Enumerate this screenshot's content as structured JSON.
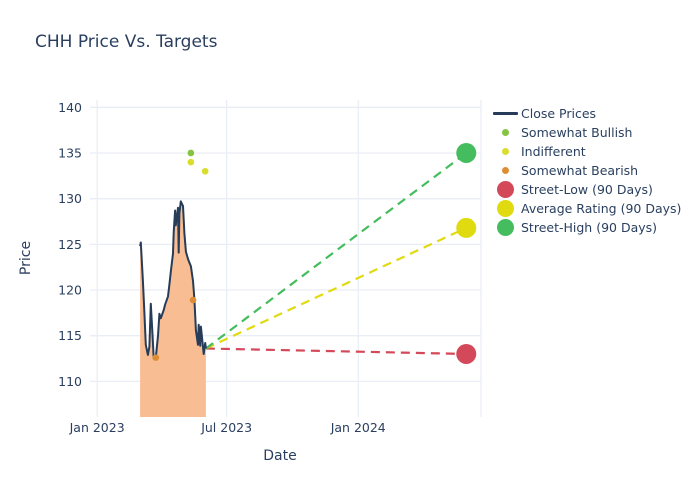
{
  "title": "CHH Price Vs. Targets",
  "colors": {
    "close_line": "#263c58",
    "close_fill": "#f9bd94",
    "bullish": "#85c340",
    "indifferent": "#d9dd2c",
    "bearish": "#dd8e35",
    "street_low": "#d4495a",
    "average": "#e0da10",
    "street_high": "#45bc5e",
    "grid": "#e9eef6",
    "text": "#2a3f5f",
    "background": "#ffffff"
  },
  "chart_data": {
    "type": "line",
    "title": "CHH Price Vs. Targets",
    "xlabel": "Date",
    "ylabel": "Price",
    "grid": true,
    "legend_position": "right",
    "x_range": [
      "2022-12-22",
      "2024-06-22"
    ],
    "y_range": [
      106.1,
      140.8
    ],
    "yticks": [
      110,
      115,
      120,
      125,
      130,
      135,
      140
    ],
    "xticks": [
      {
        "label": "Jan 2023",
        "date": "2023-01-01"
      },
      {
        "label": "Jul 2023",
        "date": "2023-07-01"
      },
      {
        "label": "Jan 2024",
        "date": "2024-01-01"
      }
    ],
    "series": [
      {
        "name": "Close Prices",
        "type": "area-line",
        "color_key": "close_line",
        "fill_key": "close_fill",
        "points": [
          [
            "2023-03-02",
            124.8
          ],
          [
            "2023-03-03",
            125.2
          ],
          [
            "2023-03-06",
            121.0
          ],
          [
            "2023-03-08",
            117.5
          ],
          [
            "2023-03-10",
            114.0
          ],
          [
            "2023-03-13",
            112.9
          ],
          [
            "2023-03-15",
            113.8
          ],
          [
            "2023-03-17",
            118.5
          ],
          [
            "2023-03-20",
            114.3
          ],
          [
            "2023-03-21",
            112.5
          ],
          [
            "2023-03-24",
            112.6
          ],
          [
            "2023-03-27",
            115.0
          ],
          [
            "2023-03-29",
            117.4
          ],
          [
            "2023-03-31",
            116.9
          ],
          [
            "2023-04-04",
            117.8
          ],
          [
            "2023-04-06",
            118.4
          ],
          [
            "2023-04-10",
            119.3
          ],
          [
            "2023-04-12",
            120.6
          ],
          [
            "2023-04-14",
            122.0
          ],
          [
            "2023-04-17",
            124.0
          ],
          [
            "2023-04-18",
            126.3
          ],
          [
            "2023-04-20",
            128.7
          ],
          [
            "2023-04-21",
            127.1
          ],
          [
            "2023-04-24",
            129.0
          ],
          [
            "2023-04-25",
            124.1
          ],
          [
            "2023-04-26",
            128.4
          ],
          [
            "2023-04-28",
            129.7
          ],
          [
            "2023-05-01",
            129.2
          ],
          [
            "2023-05-03",
            126.2
          ],
          [
            "2023-05-05",
            124.2
          ],
          [
            "2023-05-08",
            123.4
          ],
          [
            "2023-05-10",
            123.0
          ],
          [
            "2023-05-12",
            122.6
          ],
          [
            "2023-05-15",
            121.0
          ],
          [
            "2023-05-17",
            119.0
          ],
          [
            "2023-05-19",
            115.6
          ],
          [
            "2023-05-22",
            114.0
          ],
          [
            "2023-05-23",
            116.2
          ],
          [
            "2023-05-25",
            113.9
          ],
          [
            "2023-05-26",
            116.0
          ],
          [
            "2023-05-30",
            113.0
          ],
          [
            "2023-06-01",
            114.2
          ],
          [
            "2023-06-02",
            113.6
          ]
        ]
      }
    ],
    "ratings": [
      {
        "name": "Somewhat Bullish",
        "color_key": "bullish",
        "points": [
          [
            "2023-05-12",
            135.0
          ]
        ]
      },
      {
        "name": "Indifferent",
        "color_key": "indifferent",
        "points": [
          [
            "2023-05-12",
            134.0
          ],
          [
            "2023-06-01",
            133.0
          ]
        ]
      },
      {
        "name": "Somewhat Bearish",
        "color_key": "bearish",
        "points": [
          [
            "2023-03-24",
            112.6
          ],
          [
            "2023-05-15",
            118.9
          ]
        ]
      }
    ],
    "targets": [
      {
        "name": "Street-Low (90 Days)",
        "color_key": "street_low",
        "date": "2024-05-31",
        "price": 113.0
      },
      {
        "name": "Average Rating (90 Days)",
        "color_key": "average",
        "date": "2024-05-31",
        "price": 126.8
      },
      {
        "name": "Street-High (90 Days)",
        "color_key": "street_high",
        "date": "2024-05-31",
        "price": 135.0
      }
    ],
    "target_lines_from": {
      "date": "2023-06-02",
      "price": 113.6
    }
  },
  "legend": {
    "items": [
      {
        "label": "Close Prices",
        "swatch": "line",
        "color_key": "close_line"
      },
      {
        "label": "Somewhat Bullish",
        "swatch": "dot",
        "color_key": "bullish"
      },
      {
        "label": "Indifferent",
        "swatch": "dot",
        "color_key": "indifferent"
      },
      {
        "label": "Somewhat Bearish",
        "swatch": "dot",
        "color_key": "bearish"
      },
      {
        "label": "Street-Low (90 Days)",
        "swatch": "circle",
        "color_key": "street_low"
      },
      {
        "label": "Average Rating (90 Days)",
        "swatch": "circle",
        "color_key": "average"
      },
      {
        "label": "Street-High (90 Days)",
        "swatch": "circle",
        "color_key": "street_high"
      }
    ]
  },
  "axes": {
    "x_title": "Date",
    "y_title": "Price"
  }
}
